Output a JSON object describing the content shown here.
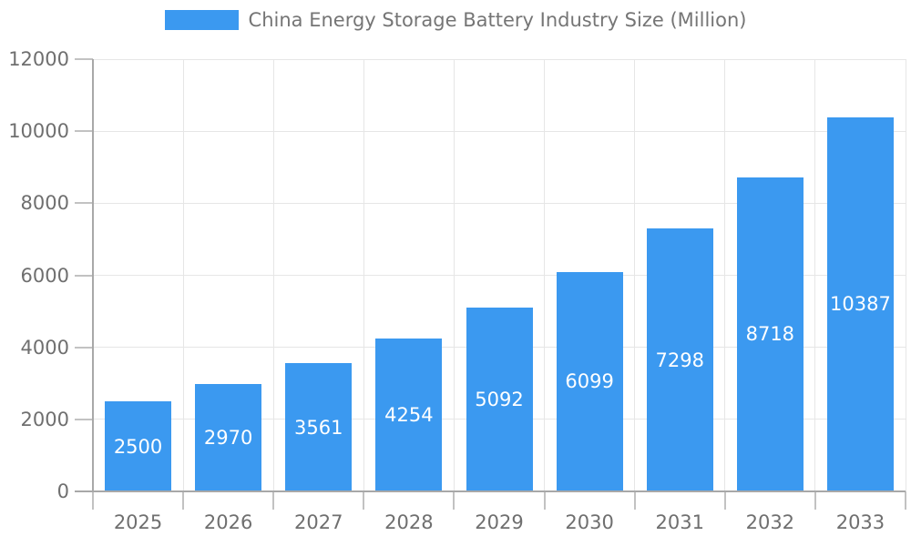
{
  "legend": {
    "label": "China Energy Storage Battery Industry Size (Million)"
  },
  "colors": {
    "bar": "#3b99f0",
    "bar_label": "#ffffff",
    "title": "#757575",
    "axis_label": "#6f6f6f",
    "grid": "#e6e6e6",
    "axis_line": "#a8a8a8",
    "tick": "#c2c2c2",
    "background": "#ffffff"
  },
  "chart_data": {
    "type": "bar",
    "title": "China Energy Storage Battery Industry Size (Million)",
    "legend_entries": [
      "China Energy Storage Battery Industry Size (Million)"
    ],
    "legend_position": "top-center",
    "categories": [
      "2025",
      "2026",
      "2027",
      "2028",
      "2029",
      "2030",
      "2031",
      "2032",
      "2033"
    ],
    "series": [
      {
        "name": "China Energy Storage Battery Industry Size (Million)",
        "values": [
          2500,
          2970,
          3561,
          4254,
          5092,
          6099,
          7298,
          8718,
          10387
        ]
      }
    ],
    "data_labels_shown": true,
    "xlabel": "",
    "ylabel": "",
    "ylim": [
      0,
      12000
    ],
    "yticks": [
      0,
      2000,
      4000,
      6000,
      8000,
      10000,
      12000
    ],
    "grid": true
  }
}
